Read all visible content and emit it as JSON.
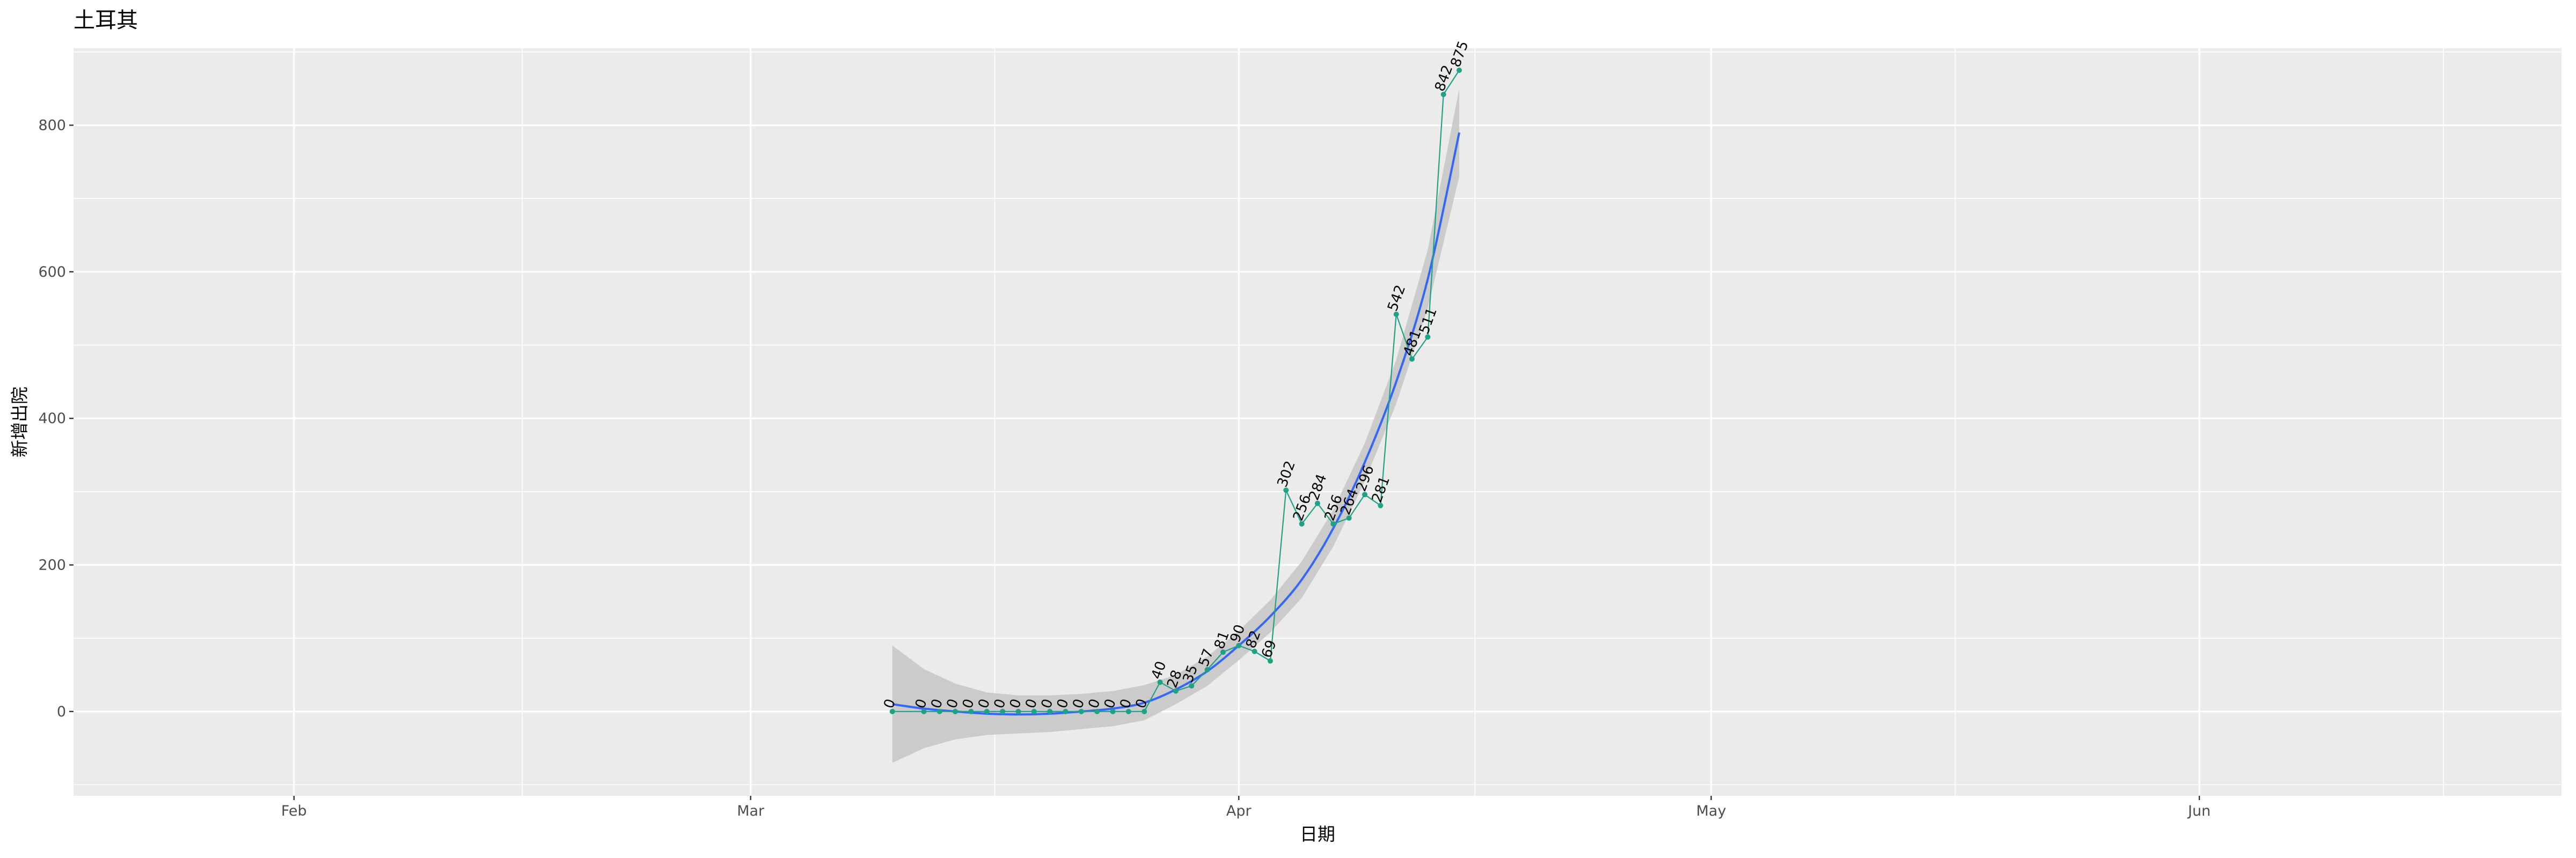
{
  "chart_data": {
    "type": "line",
    "title": "土耳其",
    "xlabel": "日期",
    "ylabel": "新增出院",
    "x_ticks": [
      {
        "date": "2020-02-01",
        "label": "Feb"
      },
      {
        "date": "2020-03-01",
        "label": "Mar"
      },
      {
        "date": "2020-04-01",
        "label": "Apr"
      },
      {
        "date": "2020-05-01",
        "label": "May"
      },
      {
        "date": "2020-06-01",
        "label": "Jun"
      }
    ],
    "y_ticks": [
      0,
      200,
      400,
      600,
      800
    ],
    "xlim": [
      "2020-01-18",
      "2020-06-24"
    ],
    "ylim": [
      -115,
      905
    ],
    "grid": true,
    "series": [
      {
        "color": "#1fa187",
        "points": [
          {
            "x": "2020-03-10",
            "y": 0
          },
          {
            "x": "2020-03-12",
            "y": 0
          },
          {
            "x": "2020-03-13",
            "y": 0
          },
          {
            "x": "2020-03-14",
            "y": 0
          },
          {
            "x": "2020-03-15",
            "y": 0
          },
          {
            "x": "2020-03-16",
            "y": 0
          },
          {
            "x": "2020-03-17",
            "y": 0
          },
          {
            "x": "2020-03-18",
            "y": 0
          },
          {
            "x": "2020-03-19",
            "y": 0
          },
          {
            "x": "2020-03-20",
            "y": 0
          },
          {
            "x": "2020-03-21",
            "y": 0
          },
          {
            "x": "2020-03-22",
            "y": 0
          },
          {
            "x": "2020-03-23",
            "y": 0
          },
          {
            "x": "2020-03-24",
            "y": 0
          },
          {
            "x": "2020-03-25",
            "y": 0
          },
          {
            "x": "2020-03-26",
            "y": 0
          },
          {
            "x": "2020-03-27",
            "y": 40
          },
          {
            "x": "2020-03-28",
            "y": 28
          },
          {
            "x": "2020-03-29",
            "y": 35
          },
          {
            "x": "2020-03-30",
            "y": 57
          },
          {
            "x": "2020-03-31",
            "y": 81
          },
          {
            "x": "2020-04-01",
            "y": 90
          },
          {
            "x": "2020-04-02",
            "y": 82
          },
          {
            "x": "2020-04-03",
            "y": 69
          },
          {
            "x": "2020-04-04",
            "y": 302
          },
          {
            "x": "2020-04-05",
            "y": 256
          },
          {
            "x": "2020-04-06",
            "y": 284
          },
          {
            "x": "2020-04-07",
            "y": 256
          },
          {
            "x": "2020-04-08",
            "y": 264
          },
          {
            "x": "2020-04-09",
            "y": 296
          },
          {
            "x": "2020-04-10",
            "y": 281
          },
          {
            "x": "2020-04-11",
            "y": 542
          },
          {
            "x": "2020-04-12",
            "y": 481
          },
          {
            "x": "2020-04-13",
            "y": 511
          },
          {
            "x": "2020-04-14",
            "y": 842
          },
          {
            "x": "2020-04-15",
            "y": 875
          }
        ]
      }
    ],
    "smooth": {
      "color": "#3366ff",
      "band_color": "#c8c8c8",
      "points": [
        {
          "x": "2020-03-10",
          "y": 10,
          "lo": -70,
          "hi": 90
        },
        {
          "x": "2020-03-12",
          "y": 4,
          "lo": -50,
          "hi": 58
        },
        {
          "x": "2020-03-14",
          "y": 0,
          "lo": -38,
          "hi": 38
        },
        {
          "x": "2020-03-16",
          "y": -3,
          "lo": -32,
          "hi": 26
        },
        {
          "x": "2020-03-18",
          "y": -4,
          "lo": -30,
          "hi": 22
        },
        {
          "x": "2020-03-20",
          "y": -3,
          "lo": -28,
          "hi": 22
        },
        {
          "x": "2020-03-22",
          "y": 0,
          "lo": -24,
          "hi": 24
        },
        {
          "x": "2020-03-24",
          "y": 4,
          "lo": -20,
          "hi": 28
        },
        {
          "x": "2020-03-26",
          "y": 12,
          "lo": -12,
          "hi": 36
        },
        {
          "x": "2020-03-28",
          "y": 30,
          "lo": 10,
          "hi": 50
        },
        {
          "x": "2020-03-30",
          "y": 55,
          "lo": 35,
          "hi": 75
        },
        {
          "x": "2020-04-01",
          "y": 90,
          "lo": 70,
          "hi": 110
        },
        {
          "x": "2020-04-03",
          "y": 130,
          "lo": 108,
          "hi": 152
        },
        {
          "x": "2020-04-05",
          "y": 180,
          "lo": 155,
          "hi": 205
        },
        {
          "x": "2020-04-07",
          "y": 250,
          "lo": 225,
          "hi": 275
        },
        {
          "x": "2020-04-09",
          "y": 340,
          "lo": 314,
          "hi": 366
        },
        {
          "x": "2020-04-11",
          "y": 450,
          "lo": 420,
          "hi": 480
        },
        {
          "x": "2020-04-13",
          "y": 590,
          "lo": 550,
          "hi": 630
        },
        {
          "x": "2020-04-15",
          "y": 790,
          "lo": 730,
          "hi": 850
        }
      ]
    }
  }
}
